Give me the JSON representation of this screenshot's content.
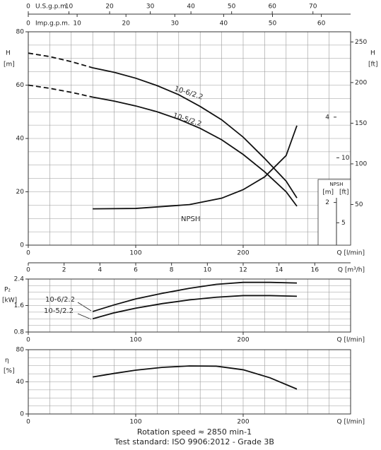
{
  "chart_data": [
    {
      "type": "line",
      "ylabel": "H",
      "yunit": "[m]",
      "ylim": [
        0,
        80
      ],
      "yticks": [
        0,
        20,
        40,
        60,
        80
      ],
      "y2label": "H",
      "y2unit": "[ft]",
      "y2lim": [
        0,
        262.47
      ],
      "y2ticks": [
        50,
        100,
        150,
        200,
        250
      ],
      "xlabel": "Q [l/min]",
      "xlim": [
        0,
        300
      ],
      "xticks": [
        0,
        100,
        200
      ],
      "grid": true,
      "grid_step_x": 20,
      "grid_step_y": 5,
      "top_axes": [
        {
          "label": "U.S.g.p.m.",
          "xlim": [
            0,
            79.26
          ],
          "xticks": [
            0,
            10,
            20,
            30,
            40,
            50,
            60,
            70
          ]
        },
        {
          "label": "Imp.g.p.m.",
          "xlim": [
            0,
            65.99
          ],
          "xticks": [
            0,
            10,
            20,
            30,
            40,
            50,
            60
          ]
        }
      ],
      "npsh_axis": {
        "title": "NPSH",
        "unit": "[m]",
        "unit2": "[ft]",
        "ylim": [
          1,
          6
        ],
        "yticks": [
          2,
          4
        ],
        "y2lim": [
          3.28,
          19.69
        ],
        "y2ticks": [
          5,
          10
        ]
      },
      "series": [
        {
          "style": "dashed",
          "color": "#111111",
          "x": [
            0,
            20,
            40,
            60
          ],
          "values": [
            72,
            70.7,
            68.8,
            66.5
          ]
        },
        {
          "name": "10-6/2.2",
          "style": "solid",
          "color": "#111111",
          "x": [
            60,
            80,
            100,
            120,
            140,
            160,
            180,
            200,
            220,
            240,
            250
          ],
          "values": [
            66.5,
            64.8,
            62.6,
            59.8,
            56.4,
            52,
            47,
            40.5,
            32.5,
            24,
            17.7
          ]
        },
        {
          "style": "dashed",
          "color": "#111111",
          "x": [
            0,
            20,
            40,
            60
          ],
          "values": [
            60,
            58.8,
            57.3,
            55.5
          ]
        },
        {
          "name": "10-5/2.2",
          "style": "solid",
          "color": "#111111",
          "x": [
            60,
            80,
            100,
            120,
            140,
            160,
            180,
            200,
            220,
            240,
            250
          ],
          "values": [
            55.5,
            54,
            52.2,
            50,
            47.2,
            43.8,
            39.5,
            34,
            27.5,
            20,
            14.6
          ]
        },
        {
          "name": "NPSH",
          "style": "solid",
          "color": "#111111",
          "axis": "npsh",
          "x": [
            60,
            100,
            150,
            180,
            200,
            220,
            240,
            250
          ],
          "values": [
            1.85,
            1.86,
            1.95,
            2.1,
            2.3,
            2.6,
            3.1,
            3.8
          ]
        }
      ]
    },
    {
      "type": "line",
      "ylabel": "P₂",
      "yunit": "[kW]",
      "ylim": [
        0.8,
        2.4
      ],
      "yticks": [
        0.8,
        1.6,
        2.4
      ],
      "xlabel": "Q [l/min]",
      "xlim": [
        0,
        300
      ],
      "xticks": [
        0,
        100,
        200
      ],
      "grid": true,
      "grid_step_x": 20,
      "grid_step_y": 0.2,
      "top_axes": [
        {
          "label": "Q [m³/h]",
          "xlim": [
            0,
            18
          ],
          "xticks": [
            0,
            2,
            4,
            6,
            8,
            10,
            12,
            14,
            16
          ]
        }
      ],
      "series": [
        {
          "name": "10-6/2.2",
          "style": "solid",
          "color": "#111111",
          "x": [
            60,
            80,
            100,
            125,
            150,
            175,
            200,
            225,
            250
          ],
          "values": [
            1.42,
            1.62,
            1.8,
            1.97,
            2.12,
            2.24,
            2.3,
            2.3,
            2.28
          ]
        },
        {
          "name": "10-5/2.2",
          "style": "solid",
          "color": "#111111",
          "x": [
            60,
            80,
            100,
            125,
            150,
            175,
            200,
            225,
            250
          ],
          "values": [
            1.2,
            1.38,
            1.52,
            1.66,
            1.77,
            1.85,
            1.9,
            1.9,
            1.88
          ]
        }
      ]
    },
    {
      "type": "line",
      "ylabel": "η",
      "yunit": "[%]",
      "ylim": [
        0,
        80
      ],
      "yticks": [
        0,
        40,
        80
      ],
      "xlabel": "Q [l/min]",
      "xlim": [
        0,
        300
      ],
      "xticks": [
        0,
        100,
        200
      ],
      "grid": true,
      "grid_step_x": 20,
      "grid_step_y": 10,
      "series": [
        {
          "style": "solid",
          "color": "#111111",
          "x": [
            60,
            80,
            100,
            125,
            150,
            175,
            200,
            225,
            250
          ],
          "values": [
            46,
            50.5,
            54.5,
            58,
            59.8,
            59.5,
            55,
            45,
            31
          ]
        }
      ]
    }
  ],
  "footer": [
    "Rotation speed ≈ 2850 min-1",
    "Test standard: ISO 9906:2012 - Grade 3B"
  ]
}
